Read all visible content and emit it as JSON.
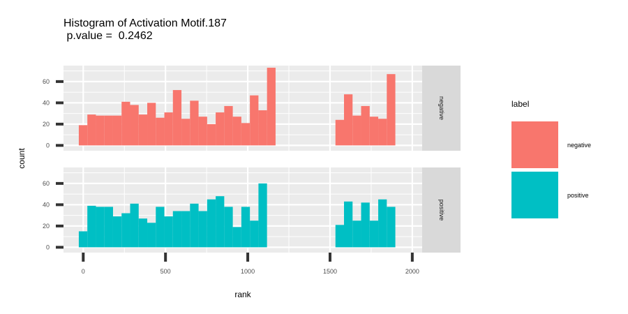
{
  "chart_data": {
    "type": "bar",
    "title": "Histogram of Activation Motif.187",
    "subtitle": " p.value =  0.2462",
    "xlabel": "rank",
    "ylabel": "count",
    "xlim": [
      -120,
      2060
    ],
    "ylim": [
      -5,
      75
    ],
    "x_ticks": [
      0,
      500,
      1000,
      1500,
      2000
    ],
    "y_ticks": [
      0,
      20,
      40,
      60
    ],
    "bins": [
      [
        -27,
        25
      ],
      [
        25,
        77
      ],
      [
        77,
        129
      ],
      [
        129,
        181
      ],
      [
        181,
        233
      ],
      [
        233,
        285
      ],
      [
        285,
        337
      ],
      [
        337,
        389
      ],
      [
        389,
        441
      ],
      [
        441,
        493
      ],
      [
        493,
        545
      ],
      [
        545,
        597
      ],
      [
        597,
        649
      ],
      [
        649,
        701
      ],
      [
        701,
        753
      ],
      [
        753,
        805
      ],
      [
        805,
        857
      ],
      [
        857,
        909
      ],
      [
        909,
        961
      ],
      [
        961,
        1013
      ],
      [
        1013,
        1065
      ],
      [
        1065,
        1117
      ],
      [
        1117,
        1169
      ],
      [
        1169,
        1221
      ],
      [
        1221,
        1273
      ],
      [
        1273,
        1325
      ],
      [
        1325,
        1377
      ],
      [
        1377,
        1429
      ],
      [
        1429,
        1481
      ],
      [
        1481,
        1533
      ],
      [
        1533,
        1585
      ],
      [
        1585,
        1637
      ],
      [
        1637,
        1689
      ],
      [
        1689,
        1741
      ],
      [
        1741,
        1793
      ],
      [
        1793,
        1845
      ],
      [
        1845,
        1897
      ],
      [
        1897,
        1949
      ],
      [
        1949,
        2001
      ]
    ],
    "panels": [
      {
        "strip_label": "negative",
        "color": "#F8766D",
        "values": [
          19,
          29,
          28,
          28,
          28,
          41,
          38,
          29,
          40,
          26,
          31,
          52,
          25,
          42,
          27,
          20,
          31,
          37,
          27,
          21,
          47,
          33,
          73,
          0,
          0,
          0,
          0,
          0,
          0,
          0,
          24,
          48,
          28,
          37,
          27,
          25,
          67,
          0,
          0
        ],
        "note": "values listed left to right"
      },
      {
        "strip_label": "positive",
        "color": "#00BFC4",
        "values": [
          15,
          39,
          38,
          38,
          29,
          32,
          41,
          27,
          23,
          38,
          29,
          34,
          34,
          41,
          34,
          45,
          48,
          38,
          19,
          38,
          25,
          60,
          0,
          0,
          0,
          0,
          0,
          0,
          0,
          0,
          21,
          43,
          25,
          42,
          25,
          45,
          38,
          0,
          0
        ]
      }
    ],
    "legend": {
      "title": "label",
      "position": "right",
      "items": [
        {
          "label": "negative",
          "color": "#F8766D"
        },
        {
          "label": "positive",
          "color": "#00BFC4"
        }
      ]
    },
    "grid": true
  }
}
